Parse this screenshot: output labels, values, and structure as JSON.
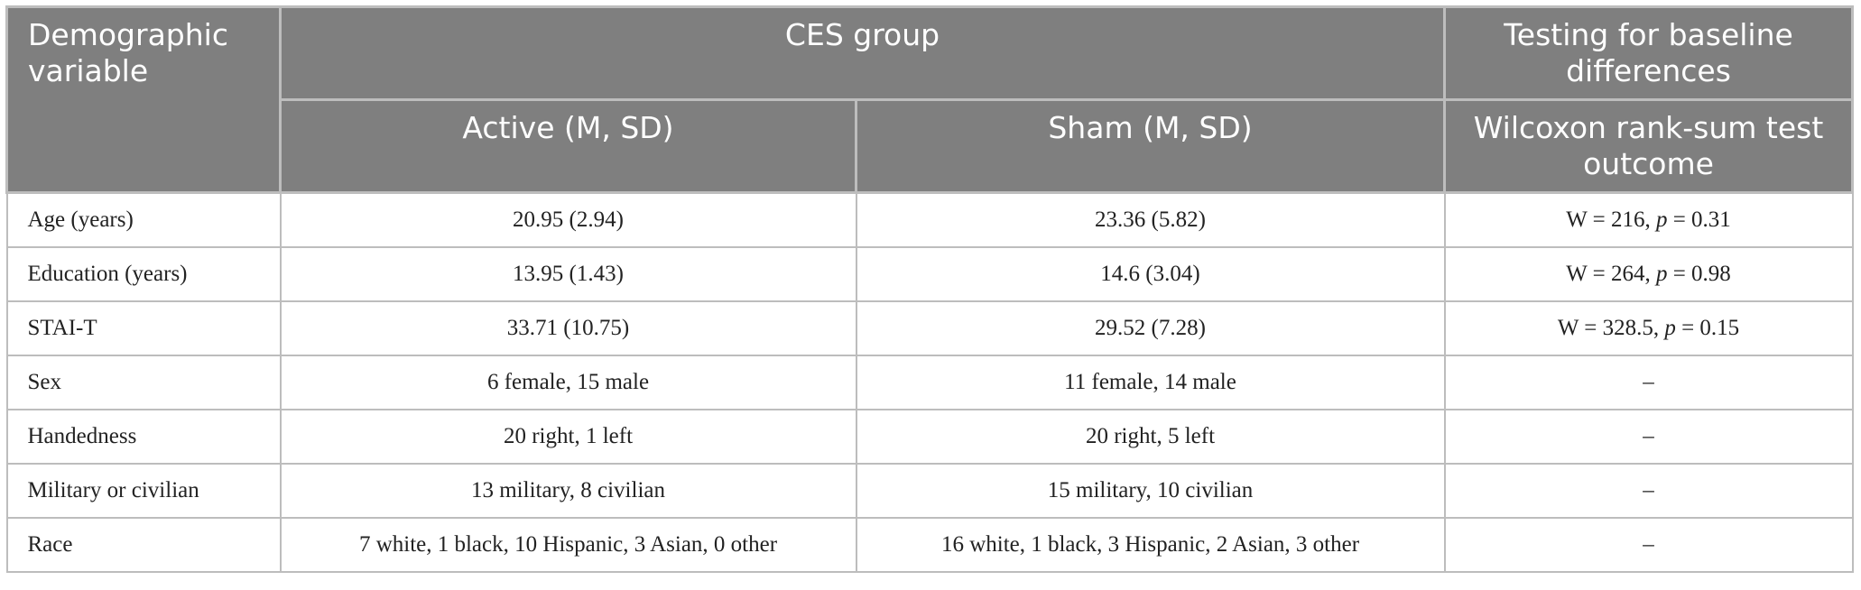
{
  "header": {
    "col0": "Demographic variable",
    "group": "CES group",
    "testing": "Testing for baseline differences",
    "active": "Active (M, SD)",
    "sham": "Sham (M, SD)",
    "test": "Wilcoxon rank-sum test outcome"
  },
  "table": {
    "rows": [
      [
        "Age (years)",
        "20.95 (2.94)",
        "23.36 (5.82)",
        "W = 216, p = 0.31"
      ],
      [
        "Education (years)",
        "13.95 (1.43)",
        "14.6 (3.04)",
        "W = 264, p = 0.98"
      ],
      [
        "STAI-T",
        "33.71 (10.75)",
        "29.52 (7.28)",
        "W = 328.5, p = 0.15"
      ],
      [
        "Sex",
        "6 female, 15 male",
        "11 female, 14 male",
        "–"
      ],
      [
        "Handedness",
        "20 right, 1 left",
        "20 right, 5 left",
        "–"
      ],
      [
        "Military or civilian",
        "13 military, 8 civilian",
        "15 military, 10 civilian",
        "–"
      ],
      [
        "Race",
        "7 white, 1 black, 10 Hispanic, 3 Asian, 0 other",
        "16 white, 1 black, 3 Hispanic, 2 Asian, 3 other",
        "–"
      ]
    ]
  }
}
